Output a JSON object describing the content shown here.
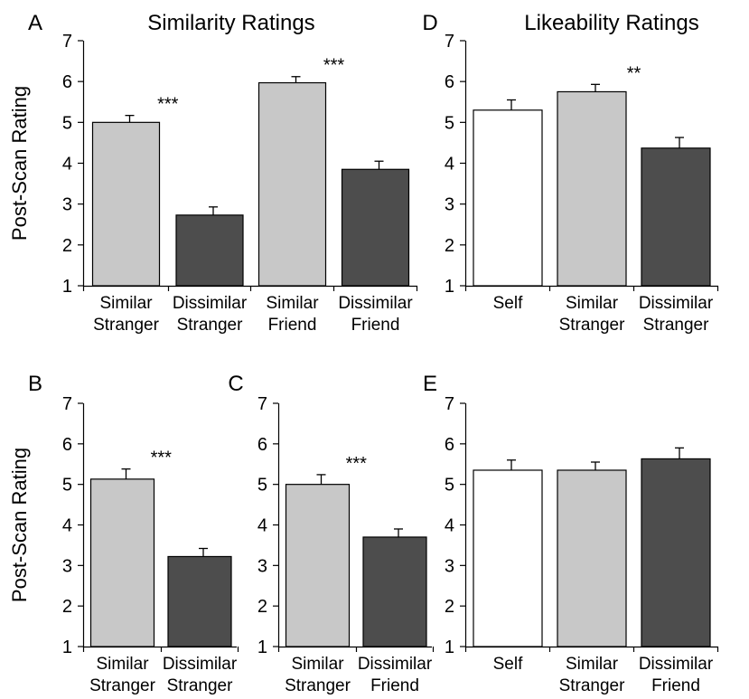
{
  "headers": {
    "similarity": "Similarity Ratings",
    "likeability": "Likeability Ratings"
  },
  "colors": {
    "self": "#ffffff",
    "similar": "#c8c8c8",
    "dissimilar": "#4d4d4d",
    "outline": "#000000"
  },
  "chart_data": [
    {
      "panel": "A",
      "type": "bar",
      "ylabel": "Post-Scan Rating",
      "ylim": [
        1,
        7
      ],
      "yticks": [
        "1",
        "2",
        "3",
        "4",
        "5",
        "6",
        "7"
      ],
      "categories": [
        [
          "Similar",
          "Stranger"
        ],
        [
          "Dissimilar",
          "Stranger"
        ],
        [
          "Similar",
          "Friend"
        ],
        [
          "Dissimilar",
          "Friend"
        ]
      ],
      "values": [
        5.0,
        2.73,
        5.97,
        3.85
      ],
      "errors": [
        0.17,
        0.2,
        0.15,
        0.2
      ],
      "fills": [
        "similar",
        "dissimilar",
        "similar",
        "dissimilar"
      ],
      "annotations": [
        {
          "text": "***",
          "between": [
            0,
            1
          ]
        },
        {
          "text": "***",
          "between": [
            2,
            3
          ]
        }
      ]
    },
    {
      "panel": "D",
      "type": "bar",
      "ylabel": "",
      "ylim": [
        1,
        7
      ],
      "yticks": [
        "1",
        "2",
        "3",
        "4",
        "5",
        "6",
        "7"
      ],
      "categories": [
        [
          "Self"
        ],
        [
          "Similar",
          "Stranger"
        ],
        [
          "Dissimilar",
          "Stranger"
        ]
      ],
      "values": [
        5.3,
        5.75,
        4.37
      ],
      "errors": [
        0.25,
        0.18,
        0.26
      ],
      "fills": [
        "self",
        "similar",
        "dissimilar"
      ],
      "annotations": [
        {
          "text": "**",
          "between": [
            1,
            2
          ]
        }
      ]
    },
    {
      "panel": "B",
      "type": "bar",
      "ylabel": "Post-Scan Rating",
      "ylim": [
        1,
        7
      ],
      "yticks": [
        "1",
        "2",
        "3",
        "4",
        "5",
        "6",
        "7"
      ],
      "categories": [
        [
          "Similar",
          "Stranger"
        ],
        [
          "Dissimilar",
          "Stranger"
        ]
      ],
      "values": [
        5.13,
        3.22
      ],
      "errors": [
        0.25,
        0.2
      ],
      "fills": [
        "similar",
        "dissimilar"
      ],
      "annotations": [
        {
          "text": "***",
          "between": [
            0,
            1
          ]
        }
      ]
    },
    {
      "panel": "C",
      "type": "bar",
      "ylabel": "",
      "ylim": [
        1,
        7
      ],
      "yticks": [
        "1",
        "2",
        "3",
        "4",
        "5",
        "6",
        "7"
      ],
      "categories": [
        [
          "Similar",
          "Stranger"
        ],
        [
          "Dissimilar",
          "Friend"
        ]
      ],
      "values": [
        5.0,
        3.7
      ],
      "errors": [
        0.24,
        0.2
      ],
      "fills": [
        "similar",
        "dissimilar"
      ],
      "annotations": [
        {
          "text": "***",
          "between": [
            0,
            1
          ]
        }
      ]
    },
    {
      "panel": "E",
      "type": "bar",
      "ylabel": "",
      "ylim": [
        1,
        7
      ],
      "yticks": [
        "1",
        "2",
        "3",
        "4",
        "5",
        "6",
        "7"
      ],
      "categories": [
        [
          "Self"
        ],
        [
          "Similar",
          "Stranger"
        ],
        [
          "Dissimilar",
          "Friend"
        ]
      ],
      "values": [
        5.35,
        5.35,
        5.63
      ],
      "errors": [
        0.25,
        0.2,
        0.27
      ],
      "fills": [
        "self",
        "similar",
        "dissimilar"
      ],
      "annotations": []
    }
  ]
}
